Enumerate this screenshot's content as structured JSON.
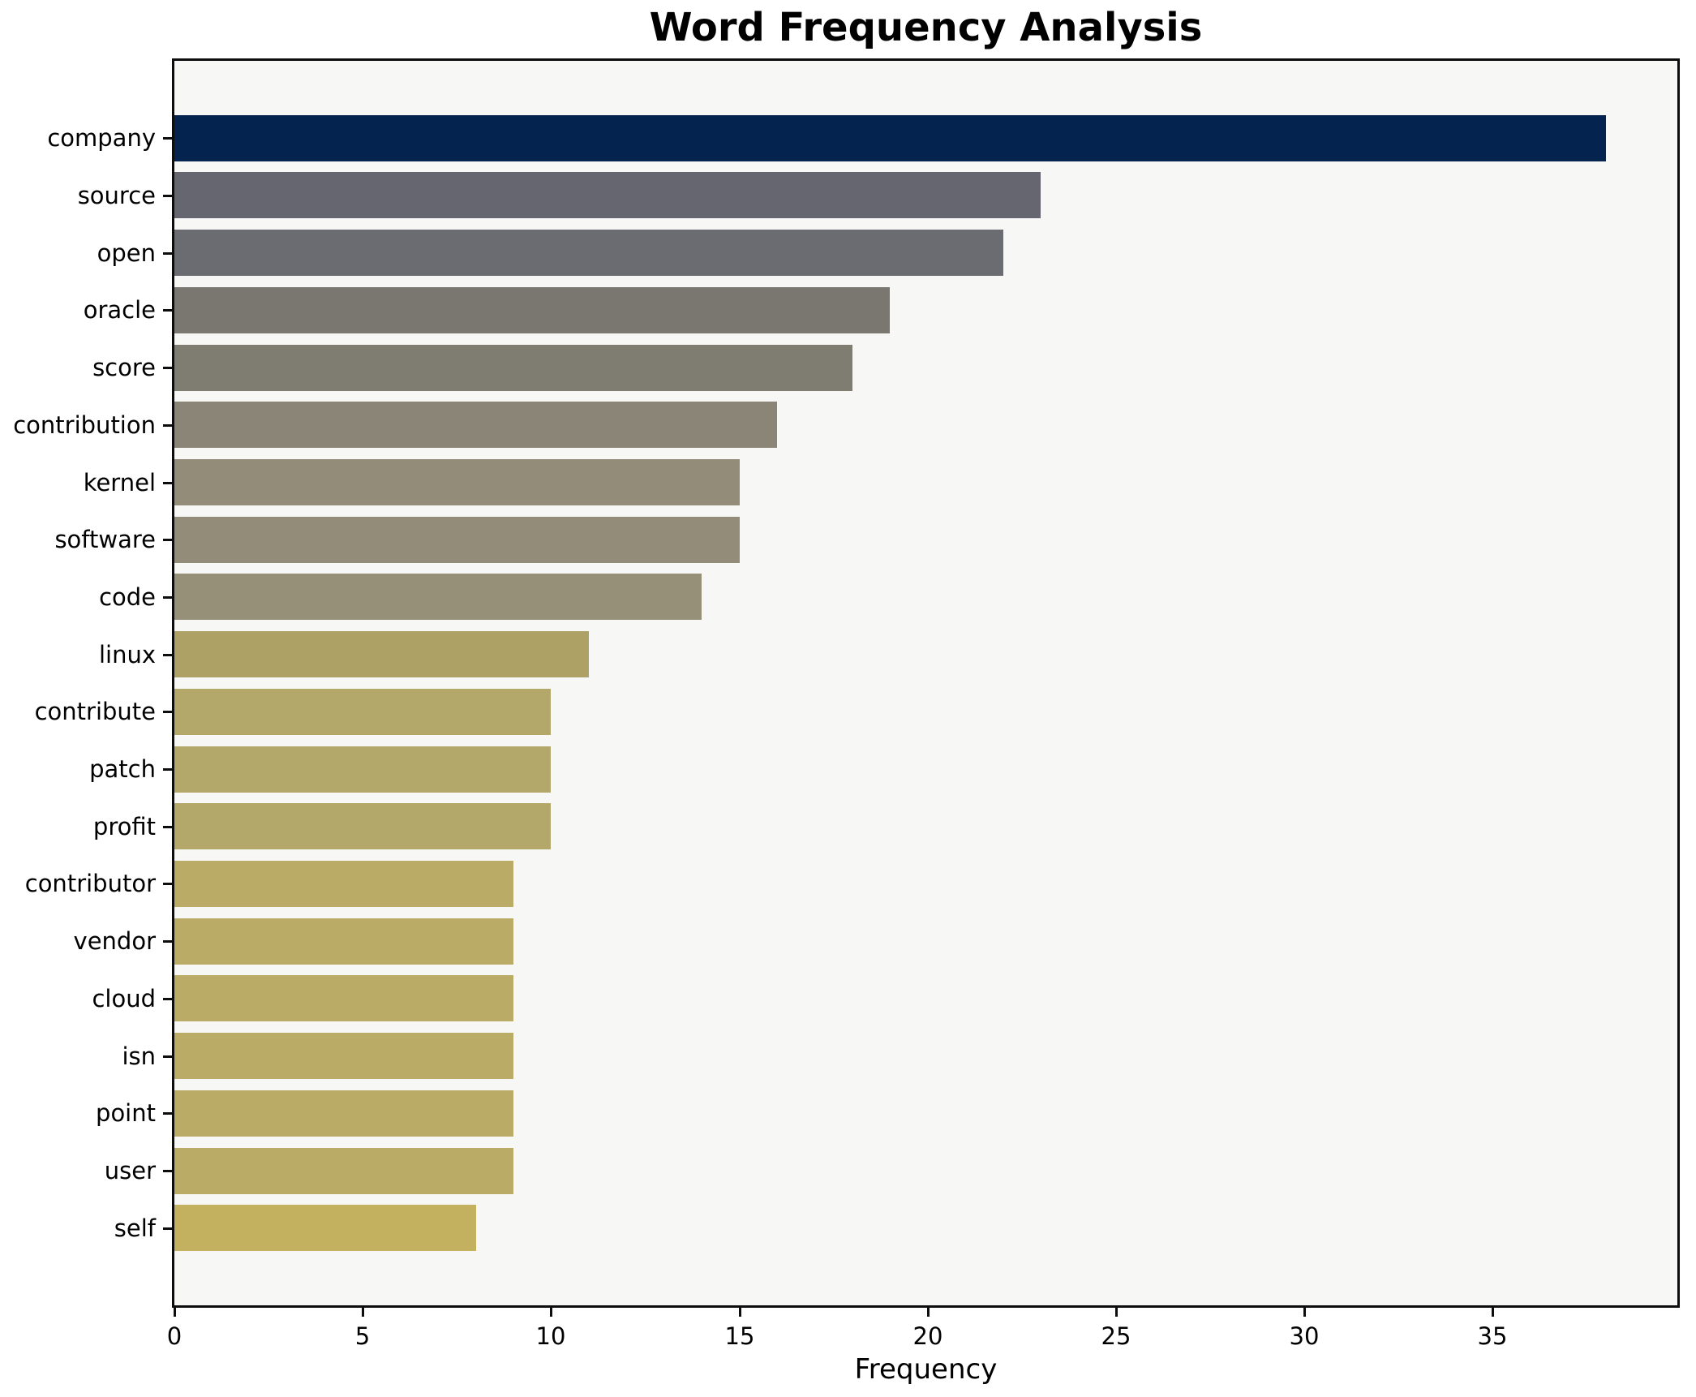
{
  "title": "Word Frequency Analysis",
  "chart_data": {
    "type": "bar",
    "orientation": "horizontal",
    "title": "Word Frequency Analysis",
    "xlabel": "Frequency",
    "ylabel": "",
    "categories": [
      "company",
      "source",
      "open",
      "oracle",
      "score",
      "contribution",
      "kernel",
      "software",
      "code",
      "linux",
      "contribute",
      "patch",
      "profit",
      "contributor",
      "vendor",
      "cloud",
      "isn",
      "point",
      "user",
      "self"
    ],
    "values": [
      38,
      23,
      22,
      19,
      18,
      16,
      15,
      15,
      14,
      11,
      10,
      10,
      10,
      9,
      9,
      9,
      9,
      9,
      9,
      8
    ],
    "bar_colors": [
      "#04234f",
      "#65666f",
      "#6b6c72",
      "#797770",
      "#7f7c72",
      "#8b8577",
      "#928c78",
      "#928c78",
      "#969078",
      "#ada166",
      "#b3a76a",
      "#b3a76a",
      "#b3a76a",
      "#baac66",
      "#baac66",
      "#baac66",
      "#baac66",
      "#baac66",
      "#baac66",
      "#c3b160"
    ],
    "xlim": [
      0,
      39.9
    ],
    "xticks": [
      0,
      5,
      10,
      15,
      20,
      25,
      30,
      35
    ],
    "grid": false,
    "legend": null,
    "plot_bg": "#f7f7f5",
    "fig_bg": "#ffffff",
    "spine_color": "#0d0d0d",
    "bar_height_fraction": 0.8
  }
}
